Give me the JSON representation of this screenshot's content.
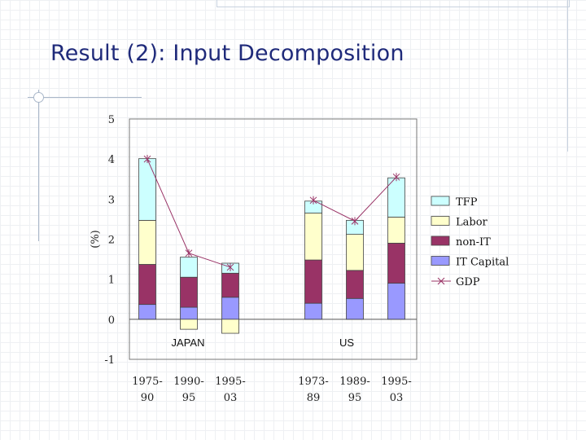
{
  "slide": {
    "title": "Result (2): Input Decomposition"
  },
  "chart_data": {
    "type": "bar",
    "stacked": true,
    "ylabel": "(%)",
    "ylim": [
      -1,
      5
    ],
    "yticks": [
      "5",
      "4",
      "3",
      "2",
      "1",
      "0",
      "-1"
    ],
    "groups": [
      {
        "label": "JAPAN",
        "categories": [
          [
            "1975-",
            "90"
          ],
          [
            "1990-",
            "95"
          ],
          [
            "1995-",
            "03"
          ]
        ]
      },
      {
        "label": "US",
        "categories": [
          [
            "1973-",
            "89"
          ],
          [
            "1989-",
            "95"
          ],
          [
            "1995-",
            "03"
          ]
        ]
      }
    ],
    "series": [
      {
        "name": "IT Capital",
        "color": "#9999ff",
        "values": [
          0.37,
          0.3,
          0.55,
          0.4,
          0.52,
          0.9
        ]
      },
      {
        "name": "non-IT",
        "color": "#993366",
        "values": [
          1.0,
          0.75,
          0.6,
          1.08,
          0.7,
          1.0
        ]
      },
      {
        "name": "Labor",
        "color": "#ffffcc",
        "values": [
          1.1,
          -0.25,
          -0.35,
          1.17,
          0.9,
          0.65
        ]
      },
      {
        "name": "TFP",
        "color": "#ccffff",
        "values": [
          1.54,
          0.5,
          0.25,
          0.3,
          0.35,
          0.98
        ]
      }
    ],
    "line_series": {
      "name": "GDP",
      "color": "#993366",
      "values": [
        4.0,
        1.65,
        1.3,
        2.97,
        2.45,
        3.55
      ]
    },
    "legend": {
      "position": "right",
      "order": [
        "TFP",
        "Labor",
        "non-IT",
        "IT Capital",
        "GDP"
      ]
    },
    "grid": false
  }
}
